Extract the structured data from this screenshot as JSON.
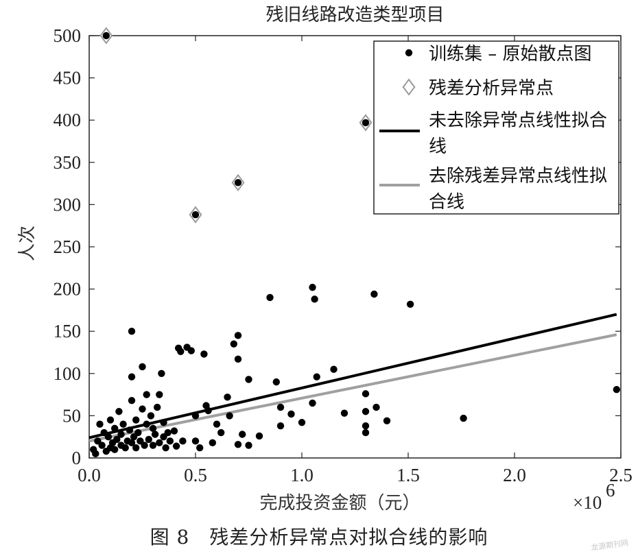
{
  "chart_data": {
    "type": "scatter",
    "title": "残旧线路改造类型项目",
    "xlabel": "完成投资金额（元）",
    "ylabel": "人次",
    "x_multiplier": "×10",
    "x_multiplier_exp": "6",
    "xlim": [
      0,
      2.5
    ],
    "ylim": [
      0,
      500
    ],
    "xticks": [
      "0.0",
      "0.5",
      "1.0",
      "1.5",
      "2.0",
      "2.5"
    ],
    "yticks": [
      "0",
      "50",
      "100",
      "150",
      "200",
      "250",
      "300",
      "350",
      "400",
      "450",
      "500"
    ],
    "legend_position": "top-right",
    "series": [
      {
        "name": "训练集 – 原始散点图",
        "kind": "points",
        "color": "#000000",
        "points": [
          [
            0.08,
            500
          ],
          [
            0.5,
            288
          ],
          [
            0.7,
            326
          ],
          [
            1.3,
            397
          ],
          [
            0.02,
            10
          ],
          [
            0.03,
            5
          ],
          [
            0.04,
            20
          ],
          [
            0.05,
            40
          ],
          [
            0.06,
            15
          ],
          [
            0.07,
            30
          ],
          [
            0.08,
            8
          ],
          [
            0.09,
            25
          ],
          [
            0.1,
            12
          ],
          [
            0.1,
            45
          ],
          [
            0.11,
            18
          ],
          [
            0.12,
            35
          ],
          [
            0.12,
            10
          ],
          [
            0.13,
            22
          ],
          [
            0.14,
            55
          ],
          [
            0.15,
            15
          ],
          [
            0.15,
            28
          ],
          [
            0.16,
            40
          ],
          [
            0.17,
            12
          ],
          [
            0.18,
            20
          ],
          [
            0.19,
            33
          ],
          [
            0.2,
            18
          ],
          [
            0.2,
            68
          ],
          [
            0.2,
            96
          ],
          [
            0.2,
            150
          ],
          [
            0.21,
            25
          ],
          [
            0.22,
            12
          ],
          [
            0.22,
            45
          ],
          [
            0.23,
            30
          ],
          [
            0.24,
            20
          ],
          [
            0.25,
            58
          ],
          [
            0.25,
            108
          ],
          [
            0.26,
            15
          ],
          [
            0.27,
            40
          ],
          [
            0.27,
            75
          ],
          [
            0.28,
            22
          ],
          [
            0.29,
            50
          ],
          [
            0.3,
            35
          ],
          [
            0.3,
            15
          ],
          [
            0.31,
            28
          ],
          [
            0.32,
            60
          ],
          [
            0.33,
            18
          ],
          [
            0.33,
            75
          ],
          [
            0.34,
            100
          ],
          [
            0.35,
            42
          ],
          [
            0.35,
            25
          ],
          [
            0.36,
            12
          ],
          [
            0.37,
            30
          ],
          [
            0.38,
            20
          ],
          [
            0.4,
            32
          ],
          [
            0.41,
            14
          ],
          [
            0.42,
            130
          ],
          [
            0.43,
            126
          ],
          [
            0.44,
            20
          ],
          [
            0.46,
            131
          ],
          [
            0.48,
            127
          ],
          [
            0.5,
            20
          ],
          [
            0.5,
            50
          ],
          [
            0.52,
            12
          ],
          [
            0.54,
            123
          ],
          [
            0.55,
            62
          ],
          [
            0.56,
            56
          ],
          [
            0.58,
            18
          ],
          [
            0.6,
            40
          ],
          [
            0.62,
            30
          ],
          [
            0.65,
            72
          ],
          [
            0.66,
            50
          ],
          [
            0.68,
            135
          ],
          [
            0.7,
            145
          ],
          [
            0.7,
            117
          ],
          [
            0.7,
            16
          ],
          [
            0.72,
            28
          ],
          [
            0.75,
            93
          ],
          [
            0.75,
            15
          ],
          [
            0.8,
            26
          ],
          [
            0.85,
            190
          ],
          [
            0.88,
            90
          ],
          [
            0.9,
            38
          ],
          [
            0.9,
            60
          ],
          [
            0.95,
            52
          ],
          [
            1.0,
            42
          ],
          [
            1.05,
            202
          ],
          [
            1.06,
            188
          ],
          [
            1.07,
            96
          ],
          [
            1.05,
            65
          ],
          [
            1.15,
            105
          ],
          [
            1.2,
            53
          ],
          [
            1.3,
            76
          ],
          [
            1.3,
            55
          ],
          [
            1.3,
            38
          ],
          [
            1.3,
            30
          ],
          [
            1.34,
            194
          ],
          [
            1.35,
            60
          ],
          [
            1.4,
            44
          ],
          [
            1.51,
            182
          ],
          [
            1.76,
            47
          ],
          [
            2.48,
            81
          ]
        ]
      },
      {
        "name": "残差分析异常点",
        "kind": "diamonds",
        "color": "#9a9a9a",
        "points": [
          [
            0.08,
            500
          ],
          [
            0.5,
            288
          ],
          [
            0.7,
            326
          ],
          [
            1.3,
            397
          ]
        ]
      },
      {
        "name": "未去除异常点线性拟合线",
        "kind": "line",
        "color": "#000000",
        "points": [
          [
            0,
            24
          ],
          [
            2.48,
            170
          ]
        ]
      },
      {
        "name": "去除残差异常点线性拟合线",
        "kind": "line",
        "color": "#a0a0a0",
        "points": [
          [
            0,
            20
          ],
          [
            2.48,
            146
          ]
        ]
      }
    ]
  },
  "caption": "图 8　残差分析异常点对拟合线的影响",
  "watermark": "龙源期刊网"
}
